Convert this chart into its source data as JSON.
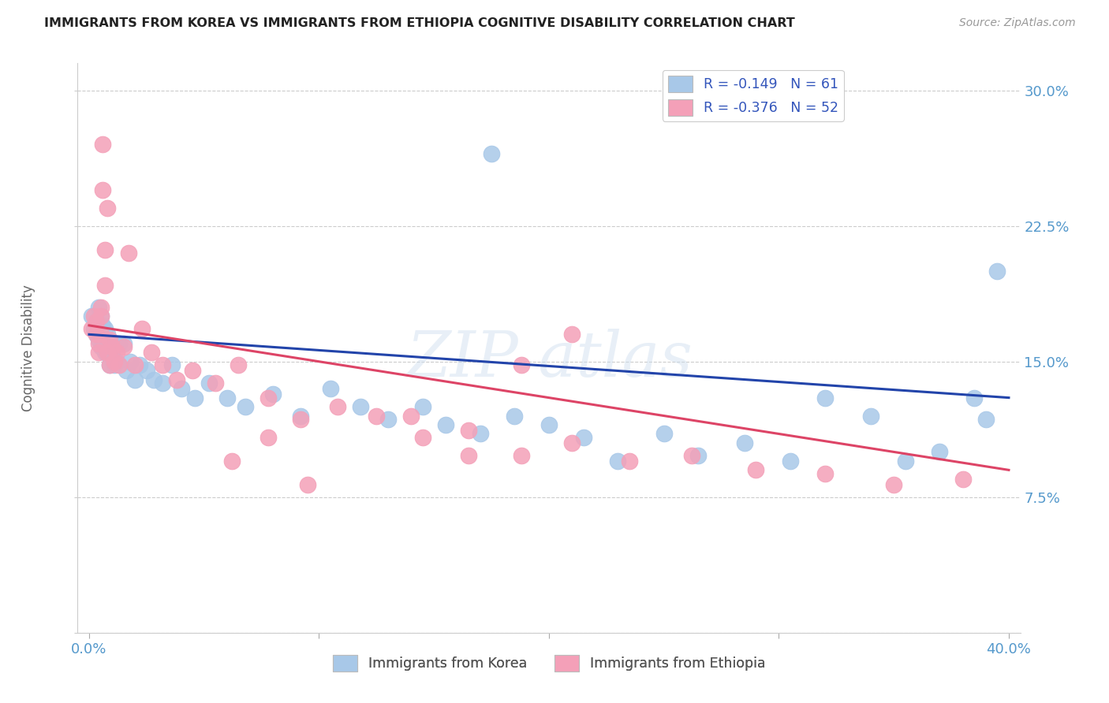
{
  "title": "IMMIGRANTS FROM KOREA VS IMMIGRANTS FROM ETHIOPIA COGNITIVE DISABILITY CORRELATION CHART",
  "source": "Source: ZipAtlas.com",
  "ylabel": "Cognitive Disability",
  "xlim": [
    -0.005,
    0.405
  ],
  "ylim": [
    0.0,
    0.315
  ],
  "xticks": [
    0.0,
    0.1,
    0.2,
    0.3,
    0.4
  ],
  "xtick_labels": [
    "0.0%",
    "",
    "",
    "",
    "40.0%"
  ],
  "yticks": [
    0.0,
    0.075,
    0.15,
    0.225,
    0.3
  ],
  "ytick_labels_right": [
    "",
    "7.5%",
    "15.0%",
    "22.5%",
    "30.0%"
  ],
  "korea_R": -0.149,
  "korea_N": 61,
  "ethiopia_R": -0.376,
  "ethiopia_N": 52,
  "korea_color": "#a8c8e8",
  "ethiopia_color": "#f4a0b8",
  "korea_line_color": "#2244aa",
  "ethiopia_line_color": "#dd4466",
  "background_color": "#ffffff",
  "grid_color": "#cccccc",
  "korea_x": [
    0.001,
    0.002,
    0.003,
    0.003,
    0.004,
    0.004,
    0.004,
    0.005,
    0.005,
    0.005,
    0.006,
    0.006,
    0.007,
    0.007,
    0.007,
    0.008,
    0.008,
    0.009,
    0.009,
    0.01,
    0.011,
    0.012,
    0.013,
    0.015,
    0.016,
    0.018,
    0.02,
    0.022,
    0.025,
    0.028,
    0.032,
    0.036,
    0.04,
    0.046,
    0.052,
    0.06,
    0.068,
    0.08,
    0.092,
    0.105,
    0.118,
    0.13,
    0.145,
    0.155,
    0.17,
    0.185,
    0.2,
    0.215,
    0.23,
    0.25,
    0.265,
    0.285,
    0.305,
    0.175,
    0.32,
    0.34,
    0.355,
    0.37,
    0.385,
    0.39,
    0.395
  ],
  "korea_y": [
    0.175,
    0.168,
    0.165,
    0.172,
    0.18,
    0.17,
    0.162,
    0.175,
    0.165,
    0.158,
    0.17,
    0.162,
    0.168,
    0.16,
    0.155,
    0.165,
    0.155,
    0.16,
    0.148,
    0.155,
    0.148,
    0.15,
    0.16,
    0.16,
    0.145,
    0.15,
    0.14,
    0.148,
    0.145,
    0.14,
    0.138,
    0.148,
    0.135,
    0.13,
    0.138,
    0.13,
    0.125,
    0.132,
    0.12,
    0.135,
    0.125,
    0.118,
    0.125,
    0.115,
    0.11,
    0.12,
    0.115,
    0.108,
    0.095,
    0.11,
    0.098,
    0.105,
    0.095,
    0.265,
    0.13,
    0.12,
    0.095,
    0.1,
    0.13,
    0.118,
    0.2
  ],
  "ethiopia_x": [
    0.001,
    0.002,
    0.003,
    0.003,
    0.004,
    0.004,
    0.005,
    0.005,
    0.005,
    0.006,
    0.006,
    0.007,
    0.007,
    0.008,
    0.008,
    0.009,
    0.009,
    0.01,
    0.011,
    0.012,
    0.013,
    0.015,
    0.017,
    0.02,
    0.023,
    0.027,
    0.032,
    0.038,
    0.045,
    0.055,
    0.065,
    0.078,
    0.092,
    0.108,
    0.125,
    0.145,
    0.165,
    0.188,
    0.21,
    0.235,
    0.262,
    0.29,
    0.32,
    0.35,
    0.38,
    0.188,
    0.21,
    0.062,
    0.078,
    0.14,
    0.165,
    0.095
  ],
  "ethiopia_y": [
    0.168,
    0.175,
    0.172,
    0.165,
    0.16,
    0.155,
    0.175,
    0.165,
    0.18,
    0.27,
    0.245,
    0.192,
    0.212,
    0.235,
    0.155,
    0.162,
    0.148,
    0.158,
    0.15,
    0.155,
    0.148,
    0.158,
    0.21,
    0.148,
    0.168,
    0.155,
    0.148,
    0.14,
    0.145,
    0.138,
    0.148,
    0.13,
    0.118,
    0.125,
    0.12,
    0.108,
    0.112,
    0.098,
    0.105,
    0.095,
    0.098,
    0.09,
    0.088,
    0.082,
    0.085,
    0.148,
    0.165,
    0.095,
    0.108,
    0.12,
    0.098,
    0.082
  ]
}
